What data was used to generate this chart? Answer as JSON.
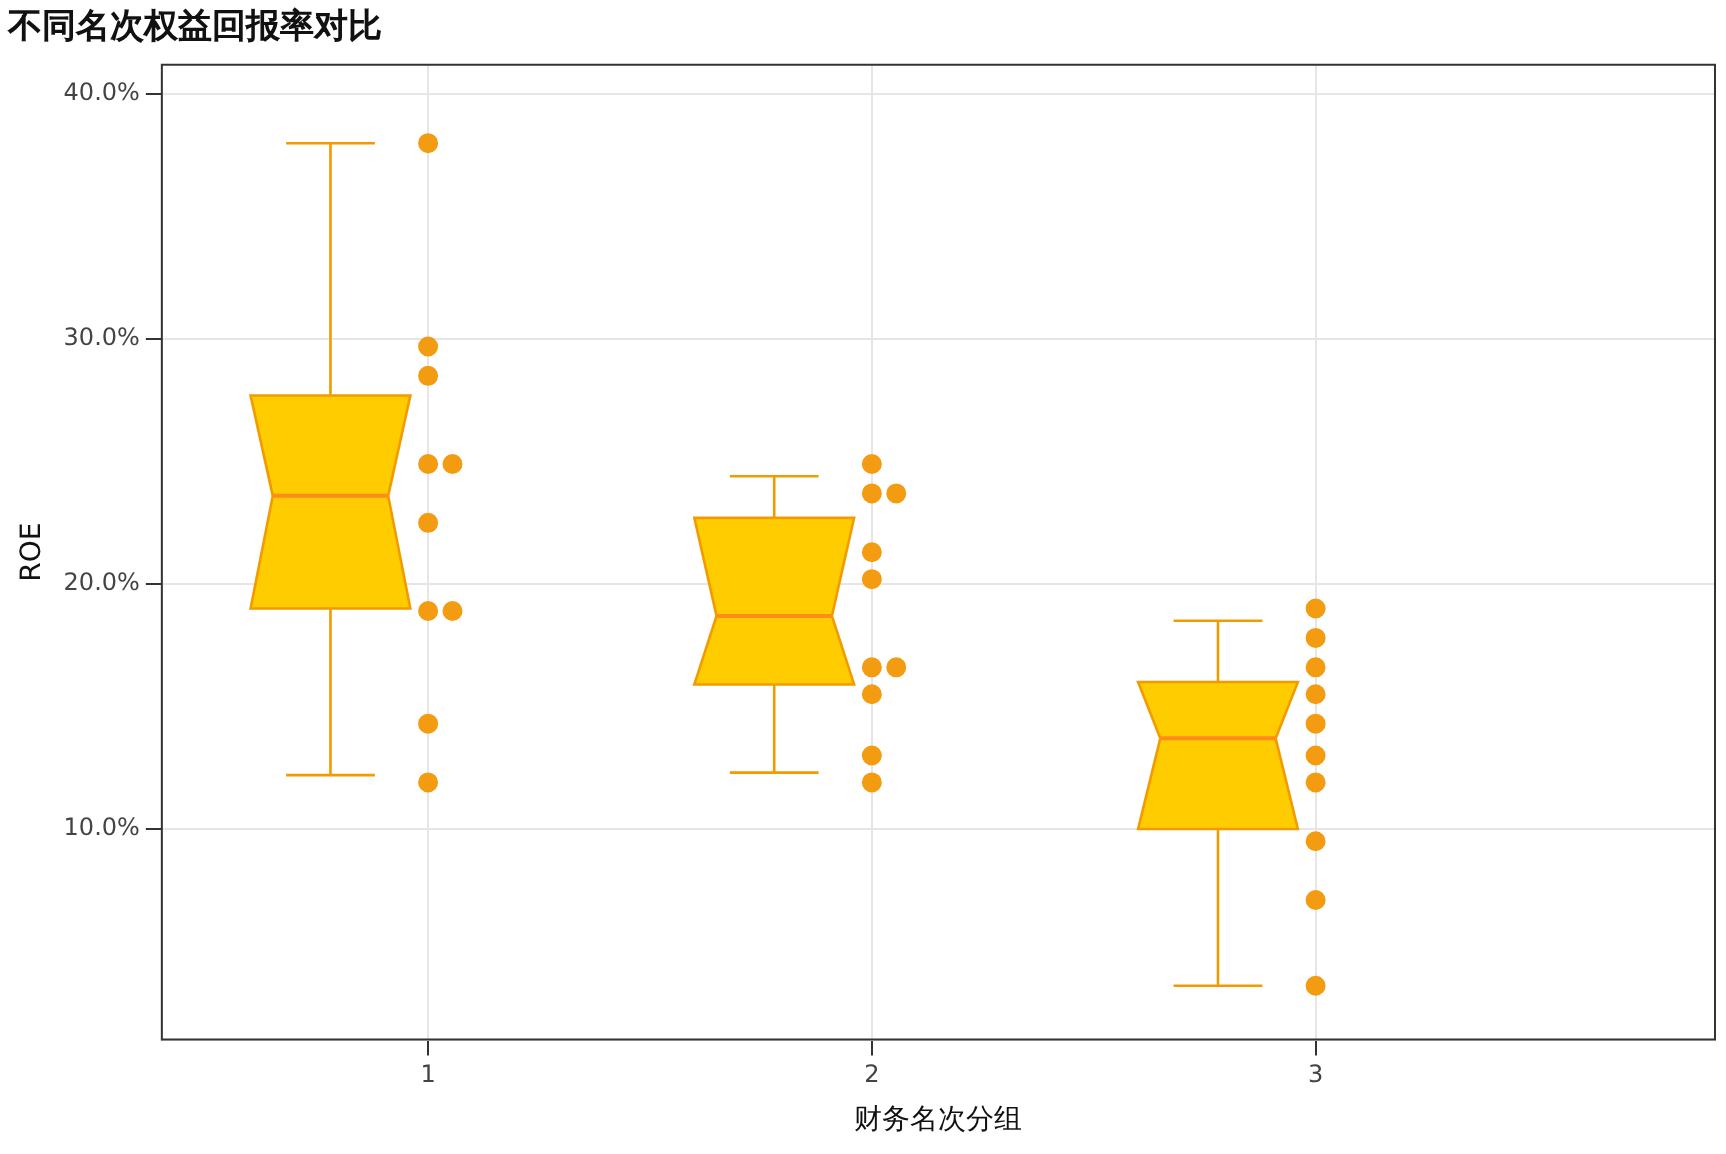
{
  "chart_data": {
    "type": "box",
    "title": "不同名次权益回报率对比",
    "xlabel": "财务名次分组",
    "ylabel": "ROE",
    "categories": [
      "1",
      "2",
      "3"
    ],
    "ylim": [
      1.4,
      41.2
    ],
    "yticks": [
      {
        "value": 10,
        "label": "10.0%"
      },
      {
        "value": 20,
        "label": "20.0%"
      },
      {
        "value": 30,
        "label": "30.0%"
      },
      {
        "value": 40,
        "label": "40.0%"
      }
    ],
    "grid": true,
    "legend": false,
    "marker": "circle",
    "series": [
      {
        "type": "box",
        "color": "#ffcc00",
        "boxes": [
          {
            "low": 12.2,
            "q1": 19.0,
            "median": 23.6,
            "q3": 27.7,
            "high": 38.0
          },
          {
            "low": 12.3,
            "q1": 15.9,
            "median": 18.7,
            "q3": 22.7,
            "high": 24.4
          },
          {
            "low": 3.6,
            "q1": 10.0,
            "median": 13.7,
            "q3": 16.0,
            "high": 18.5
          }
        ]
      },
      {
        "type": "scatter",
        "color": "#f39c12",
        "x": [
          "1",
          "1",
          "1",
          "1",
          "1",
          "1",
          "1",
          "1",
          "1",
          "1",
          "2",
          "2",
          "2",
          "2",
          "2",
          "2",
          "2",
          "2",
          "2",
          "2",
          "3",
          "3",
          "3",
          "3",
          "3",
          "3",
          "3",
          "3",
          "3",
          "3"
        ],
        "values": [
          38.0,
          29.7,
          28.5,
          24.9,
          24.9,
          22.5,
          18.9,
          18.9,
          14.3,
          11.9,
          24.9,
          23.7,
          23.7,
          21.3,
          20.2,
          16.6,
          16.6,
          15.5,
          13.0,
          11.9,
          19.0,
          17.8,
          16.6,
          15.5,
          14.3,
          13.0,
          11.9,
          9.5,
          7.1,
          3.6
        ]
      }
    ]
  }
}
